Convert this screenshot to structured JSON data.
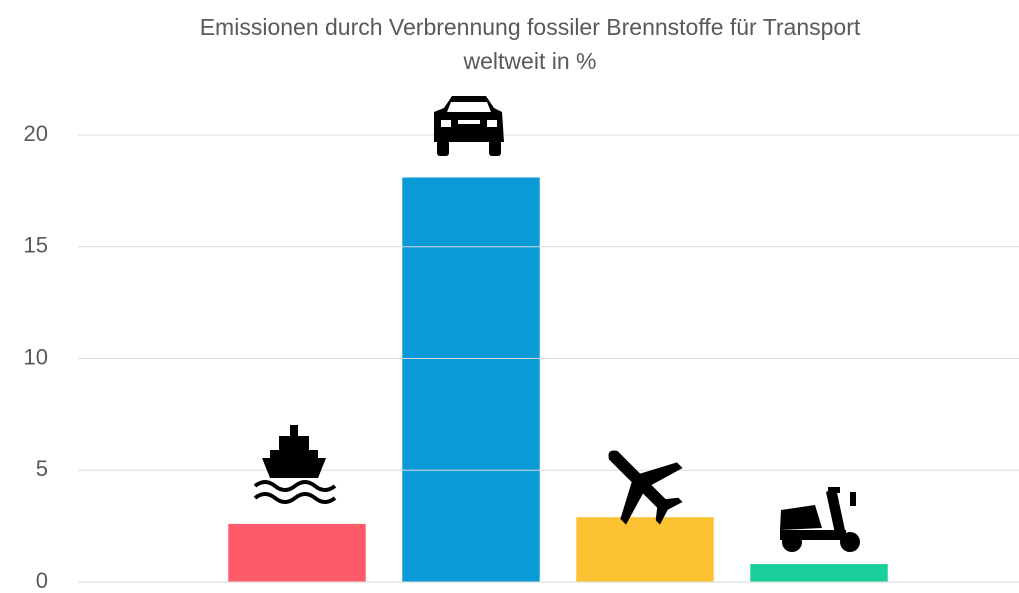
{
  "chart_data": {
    "type": "bar",
    "title": "Emissionen durch Verbrennung fossiler Brennstoffe für Transport weltweit in %",
    "categories": [
      null,
      null,
      null,
      null
    ],
    "values": [
      2.6,
      18.1,
      2.9,
      0.8
    ],
    "colors": [
      "#ff5a6a",
      "#0a9ad8",
      "#fcc232",
      "#1bcf9a"
    ],
    "ylim": [
      0,
      20
    ],
    "yticks": [
      0,
      5,
      10,
      15,
      20
    ],
    "grid": true
  }
}
